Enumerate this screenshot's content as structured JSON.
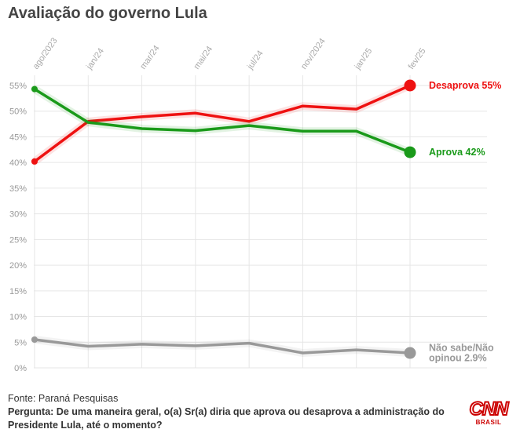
{
  "title": "Avaliação do governo Lula",
  "footer": {
    "source": "Fonte: Paraná Pesquisas",
    "question": "Pergunta: De uma maneira geral, o(a) Sr(a) diria que aprova ou desaprova a administração do Presidente Lula, até o momento?"
  },
  "logo": {
    "text": "CNN",
    "subtext": "BRASIL"
  },
  "chart_data": {
    "type": "line",
    "x": [
      "ago/2023",
      "jan/24",
      "mar/24",
      "mai/24",
      "jul/24",
      "nov/2024",
      "jan/25",
      "fev/25"
    ],
    "y_ticks": [
      "0%",
      "5%",
      "10%",
      "15%",
      "20%",
      "25%",
      "30%",
      "35%",
      "40%",
      "45%",
      "50%",
      "55%"
    ],
    "ylim": [
      0,
      55
    ],
    "grid": true,
    "series": [
      {
        "name": "Desaprova",
        "label": "Desaprova 55%",
        "color": "#ee1111",
        "values": [
          40.2,
          48.0,
          48.9,
          49.6,
          48.0,
          51.0,
          50.4,
          55.0
        ]
      },
      {
        "name": "Aprova",
        "label": "Aprova 42%",
        "color": "#1a9a1a",
        "values": [
          54.3,
          47.8,
          46.6,
          46.2,
          47.2,
          46.1,
          46.1,
          42.0
        ]
      },
      {
        "name": "Não sabe/Não opinou",
        "label": "Não sabe/Não opinou 2.9%",
        "label_lines": [
          "Não sabe/Não",
          "opinou 2.9%"
        ],
        "color": "#999999",
        "values": [
          5.5,
          4.2,
          4.6,
          4.3,
          4.8,
          2.9,
          3.5,
          2.9
        ]
      }
    ]
  }
}
